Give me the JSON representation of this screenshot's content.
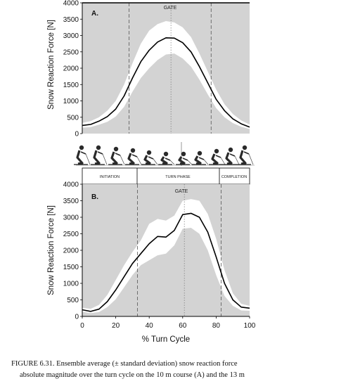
{
  "chart_data": [
    {
      "panel": "A.",
      "type": "area",
      "ylabel": "Snow Reaction Force [N]",
      "xlabel": "",
      "xlim": [
        0,
        100
      ],
      "ylim": [
        0,
        4000
      ],
      "yticks": [
        0,
        500,
        1000,
        1500,
        2000,
        2500,
        3000,
        3500,
        4000
      ],
      "x": [
        0,
        5,
        10,
        15,
        20,
        25,
        30,
        35,
        40,
        45,
        50,
        55,
        60,
        65,
        70,
        75,
        80,
        85,
        90,
        95,
        100
      ],
      "mean": [
        250,
        280,
        380,
        520,
        750,
        1150,
        1700,
        2200,
        2550,
        2800,
        2930,
        2920,
        2780,
        2500,
        2050,
        1550,
        1050,
        700,
        450,
        300,
        200
      ],
      "upper": [
        330,
        380,
        500,
        700,
        1000,
        1500,
        2150,
        2750,
        3150,
        3350,
        3440,
        3400,
        3250,
        2950,
        2450,
        1900,
        1350,
        900,
        600,
        400,
        280
      ],
      "lower": [
        180,
        200,
        270,
        360,
        520,
        820,
        1280,
        1700,
        2000,
        2250,
        2420,
        2450,
        2300,
        2050,
        1650,
        1200,
        780,
        500,
        320,
        210,
        140
      ],
      "annotation": "GATE",
      "vlines": [
        28,
        53,
        77
      ],
      "vline_styles": [
        "dashed",
        "dotted",
        "dashed"
      ]
    },
    {
      "panel": "B.",
      "type": "area",
      "ylabel": "Snow Reaction Force [N]",
      "xlabel": "% Turn Cycle",
      "xlim": [
        0,
        100
      ],
      "ylim": [
        0,
        4000
      ],
      "yticks": [
        0,
        500,
        1000,
        1500,
        2000,
        2500,
        3000,
        3500,
        4000
      ],
      "xticks": [
        0,
        20,
        40,
        60,
        80,
        100
      ],
      "x": [
        0,
        5,
        10,
        15,
        20,
        25,
        30,
        35,
        40,
        45,
        50,
        55,
        60,
        65,
        70,
        75,
        80,
        85,
        90,
        95,
        100
      ],
      "mean": [
        200,
        150,
        220,
        450,
        800,
        1200,
        1600,
        1900,
        2200,
        2420,
        2400,
        2600,
        3080,
        3120,
        3000,
        2550,
        1800,
        1000,
        500,
        280,
        250
      ],
      "upper": [
        260,
        230,
        350,
        650,
        1100,
        1550,
        1950,
        2300,
        2800,
        2950,
        2900,
        3050,
        3500,
        3550,
        3500,
        3100,
        2350,
        1400,
        700,
        380,
        320
      ],
      "lower": [
        140,
        100,
        130,
        280,
        520,
        880,
        1250,
        1550,
        1700,
        1850,
        1900,
        2150,
        2650,
        2680,
        2500,
        2000,
        1250,
        620,
        320,
        180,
        170
      ],
      "annotation": "GATE",
      "vlines": [
        33,
        61,
        83
      ],
      "vline_styles": [
        "dashed",
        "dotted",
        "dashed"
      ]
    }
  ],
  "phases": [
    "INITIATION",
    "TURN PHASE",
    "COMPLETION"
  ],
  "caption_line1": "FIGURE 6.31.  Ensemble average (± standard deviation) snow reaction force",
  "caption_line2": "absolute magnitude over the turn cycle on the 10 m course (A) and the 13 m",
  "colors": {
    "panel_bg": "#d3d3d3",
    "band": "#ffffff",
    "mean_line": "#000000"
  }
}
